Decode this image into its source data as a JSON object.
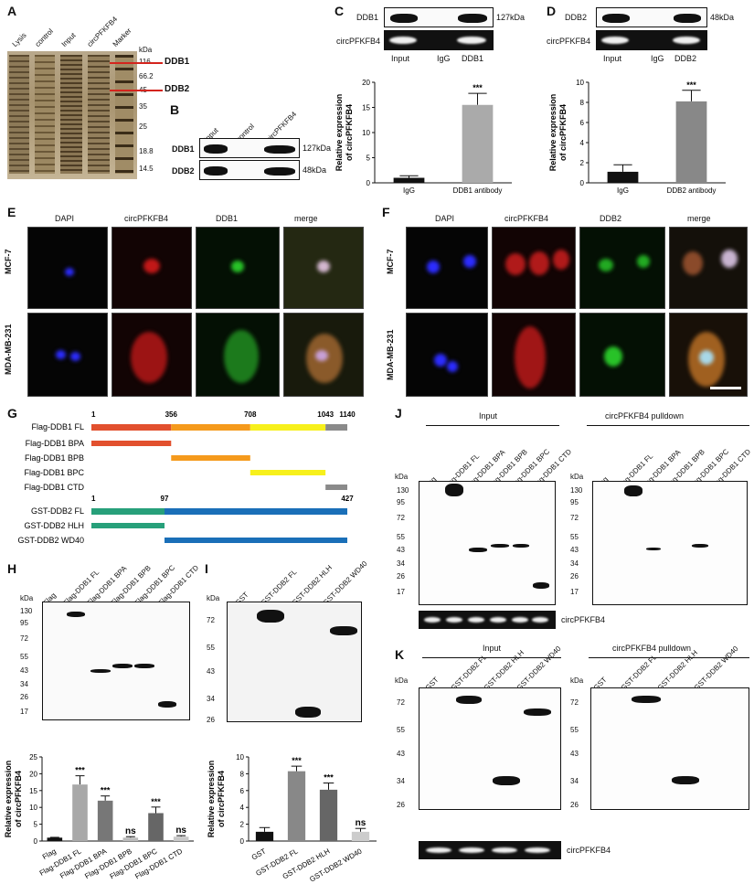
{
  "panels": {
    "A": "A",
    "B": "B",
    "C": "C",
    "D": "D",
    "E": "E",
    "F": "F",
    "G": "G",
    "H": "H",
    "I": "I",
    "J": "J",
    "K": "K"
  },
  "panelA": {
    "lanes": [
      "Lysis",
      "control",
      "Input",
      "circPFKFB4",
      "Marker"
    ],
    "kda": "kDa",
    "markers": [
      "116",
      "66.2",
      "45",
      "35",
      "25",
      "18.8",
      "14.5"
    ],
    "arrows": [
      "DDB1",
      "DDB2"
    ]
  },
  "panelB": {
    "lanes": [
      "Input",
      "control",
      "circPFKFB4"
    ],
    "rows": [
      "DDB1",
      "DDB2"
    ],
    "sizes": [
      "127kDa",
      "48kDa"
    ]
  },
  "panelC": {
    "rows": [
      "DDB1",
      "circPFKFB4"
    ],
    "size": "127kDa",
    "lanes": [
      "Input",
      "IgG",
      "DDB1"
    ],
    "ylabel": "Relative expression of circPFKFB4"
  },
  "panelD": {
    "rows": [
      "DDB2",
      "circPFKFB4"
    ],
    "size": "48kDa",
    "lanes": [
      "Input",
      "IgG",
      "DDB2"
    ],
    "ylabel": "Relative expression of circPFKFB4"
  },
  "panelE": {
    "cols": [
      "DAPI",
      "circPFKFB4",
      "DDB1",
      "merge"
    ],
    "rows": [
      "MCF-7",
      "MDA-MB-231"
    ]
  },
  "panelF": {
    "cols": [
      "DAPI",
      "circPFKFB4",
      "DDB2",
      "merge"
    ],
    "rows": [
      "MCF-7",
      "MDA-MB-231"
    ]
  },
  "panelG": {
    "ddb1": {
      "positions": [
        "1",
        "356",
        "708",
        "1043",
        "1140"
      ],
      "constructs": [
        "Flag-DDB1 FL",
        "Flag-DDB1 BPA",
        "Flag-DDB1 BPB",
        "Flag-DDB1 BPC",
        "Flag-DDB1 CTD"
      ]
    },
    "ddb2": {
      "positions": [
        "1",
        "97",
        "427"
      ],
      "constructs": [
        "GST-DDB2 FL",
        "GST-DDB2 HLH",
        "GST-DDB2 WD40"
      ]
    },
    "colors": {
      "red": "#e2502e",
      "orange": "#f59a1c",
      "yellow": "#f7f01c",
      "gray": "#8a8a8a",
      "green": "#27a07a",
      "blue": "#1a6fb8"
    }
  },
  "panelH": {
    "lanes": [
      "Flag",
      "Flag-DDB1 FL",
      "Flag-DDB1 BPA",
      "Flag-DDB1 BPB",
      "Flag-DDB1 BPC",
      "Flag-DDB1 CTD"
    ],
    "kda": "kDa",
    "markers": [
      "130",
      "95",
      "72",
      "55",
      "43",
      "34",
      "26",
      "17"
    ],
    "ylabel": "Relative expression of circPFKFB4"
  },
  "panelI": {
    "lanes": [
      "GST",
      "GST-DDB2 FL",
      "GST-DDB2 HLH",
      "GST-DDB2 WD40"
    ],
    "kda": "kDa",
    "markers": [
      "72",
      "55",
      "43",
      "34",
      "26"
    ],
    "ylabel": "Relative expression of circPFKFB4"
  },
  "panelJ": {
    "titles": [
      "Input",
      "circPFKFB4 pulldown"
    ],
    "lanes": [
      "Flag",
      "Flag-DDB1 FL",
      "Flag-DDB1 BPA",
      "Flag-DDB1 BPB",
      "Flag-DDB1 BPC",
      "Flag-DDB1 CTD"
    ],
    "kda": "kDa",
    "markers": [
      "130",
      "95",
      "72",
      "55",
      "43",
      "34",
      "26",
      "17"
    ],
    "gel": "circPFKFB4"
  },
  "panelK": {
    "titles": [
      "Input",
      "circPFKFB4 pulldown"
    ],
    "lanes": [
      "GST",
      "GST-DDB2 FL",
      "GST-DDB2 HLH",
      "GST-DDB2 WD40"
    ],
    "kda": "kDa",
    "markers": [
      "72",
      "55",
      "43",
      "34",
      "26"
    ],
    "gel": "circPFKFB4"
  },
  "chart_data": [
    {
      "type": "bar",
      "categories": [
        "IgG",
        "DDB1 antibody"
      ],
      "values": [
        1.0,
        15.5
      ],
      "errors": [
        0.4,
        2.3
      ],
      "ylabel": "Relative expression of circPFKFB4",
      "ylim": [
        0,
        20
      ],
      "yticks": [
        0,
        5,
        10,
        15,
        20
      ],
      "significance": [
        "",
        "***"
      ]
    },
    {
      "type": "bar",
      "categories": [
        "IgG",
        "DDB2 antibody"
      ],
      "values": [
        1.1,
        8.1
      ],
      "errors": [
        0.7,
        1.1
      ],
      "ylabel": "Relative expression of circPFKFB4",
      "ylim": [
        0,
        10
      ],
      "yticks": [
        0,
        2,
        4,
        6,
        8,
        10
      ],
      "significance": [
        "",
        "***"
      ]
    },
    {
      "type": "bar",
      "categories": [
        "Flag",
        "Flag-DDB1 FL",
        "Flag-DDB1 BPA",
        "Flag-DDB1 BPB",
        "Flag-DDB1 BPC",
        "Flag-DDB1 CTD"
      ],
      "values": [
        1.0,
        16.8,
        12.0,
        1.0,
        8.3,
        1.3
      ],
      "errors": [
        0.1,
        2.6,
        1.4,
        0.3,
        1.8,
        0.3
      ],
      "ylabel": "Relative expression of circPFKFB4",
      "ylim": [
        0,
        25
      ],
      "yticks": [
        0,
        5,
        10,
        15,
        20,
        25
      ],
      "significance": [
        "",
        "***",
        "***",
        "ns",
        "***",
        "ns"
      ]
    },
    {
      "type": "bar",
      "categories": [
        "GST",
        "GST-DDB2 FL",
        "GST-DDB2 HLH",
        "GST-DDB2 WD40"
      ],
      "values": [
        1.1,
        8.3,
        6.1,
        1.1
      ],
      "errors": [
        0.5,
        0.6,
        0.8,
        0.4
      ],
      "ylabel": "Relative expression of circPFKFB4",
      "ylim": [
        0,
        10
      ],
      "yticks": [
        0,
        2,
        4,
        6,
        8,
        10
      ],
      "significance": [
        "",
        "***",
        "***",
        "ns"
      ]
    }
  ]
}
